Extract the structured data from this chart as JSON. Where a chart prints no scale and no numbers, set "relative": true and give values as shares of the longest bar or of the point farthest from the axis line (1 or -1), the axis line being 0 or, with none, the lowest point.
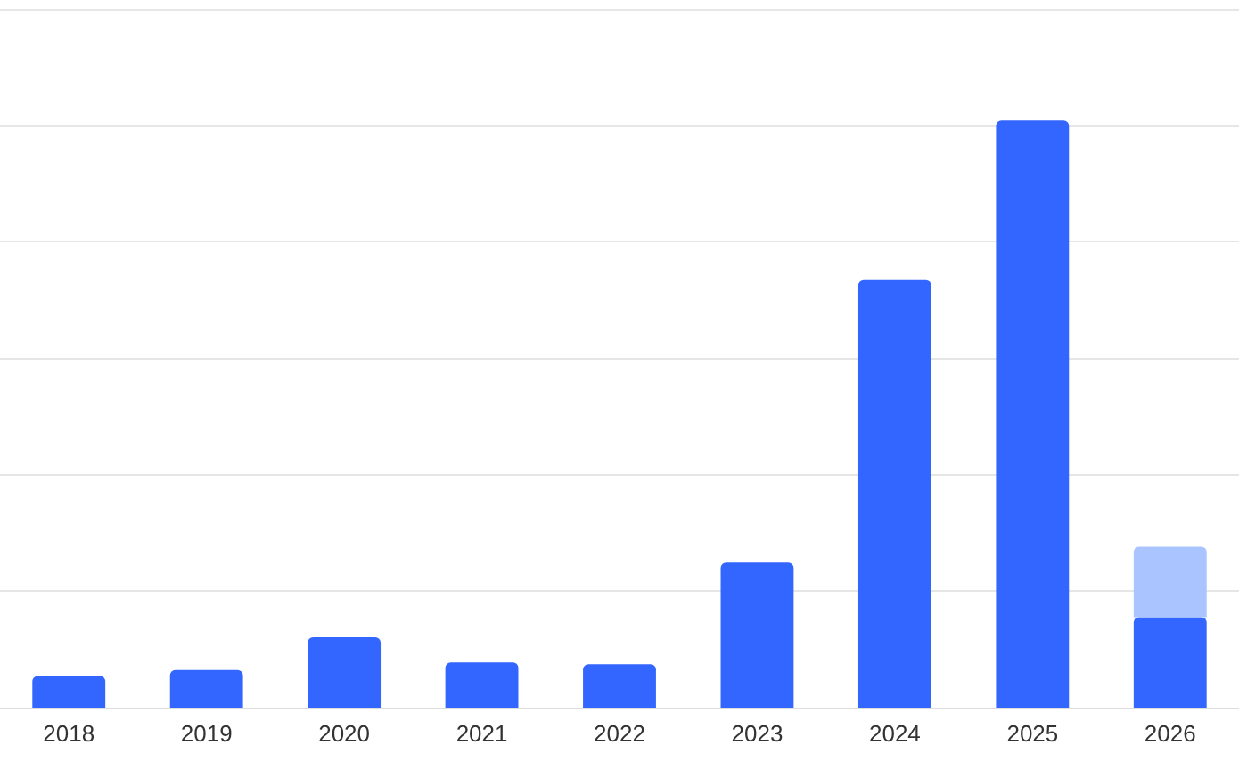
{
  "chart_data": {
    "type": "bar",
    "relative": true,
    "stacked": true,
    "grid": "y",
    "categories": [
      "2018",
      "2019",
      "2020",
      "2021",
      "2022",
      "2023",
      "2024",
      "2025",
      "2026"
    ],
    "series": [
      {
        "color": "#3366ff",
        "values": [
          0.054,
          0.064,
          0.12,
          0.077,
          0.074,
          0.247,
          0.729,
          1,
          0.154
        ]
      },
      {
        "color": "#aac4ff",
        "values": [
          null,
          null,
          null,
          null,
          null,
          null,
          null,
          null,
          0.12
        ]
      }
    ]
  }
}
